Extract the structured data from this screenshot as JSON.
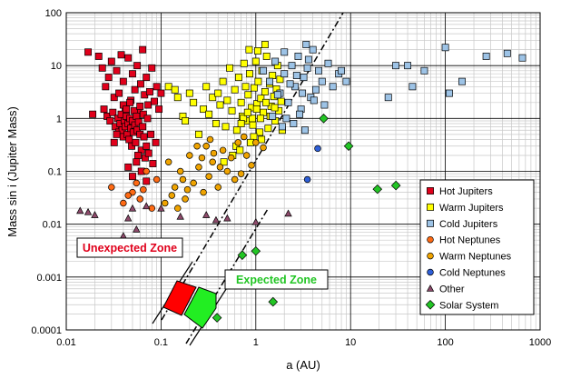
{
  "chart_data": {
    "type": "scatter",
    "xlabel": "a (AU)",
    "ylabel": "Mass sin i (Jupiter Mass)",
    "xscale": "log",
    "yscale": "log",
    "xlim": [
      0.01,
      1000
    ],
    "ylim": [
      0.0001,
      100
    ],
    "x_ticks": [
      "0.01",
      "0.1",
      "1",
      "10",
      "100",
      "1000"
    ],
    "y_ticks": [
      "0.0001",
      "0.001",
      "0.01",
      "0.1",
      "1",
      "10",
      "100"
    ],
    "grid": true,
    "legend_position": "right",
    "series": [
      {
        "name": "Hot Jupiters",
        "marker": "square",
        "color": "#e0001b",
        "points": [
          [
            0.017,
            18
          ],
          [
            0.019,
            1.2
          ],
          [
            0.022,
            15
          ],
          [
            0.024,
            9
          ],
          [
            0.026,
            4
          ],
          [
            0.028,
            6
          ],
          [
            0.03,
            12
          ],
          [
            0.032,
            2.5
          ],
          [
            0.034,
            8
          ],
          [
            0.036,
            3
          ],
          [
            0.038,
            16
          ],
          [
            0.04,
            5
          ],
          [
            0.042,
            1.6
          ],
          [
            0.045,
            14
          ],
          [
            0.048,
            2.2
          ],
          [
            0.05,
            7
          ],
          [
            0.053,
            3.5
          ],
          [
            0.056,
            10
          ],
          [
            0.058,
            1.3
          ],
          [
            0.061,
            4.5
          ],
          [
            0.064,
            20
          ],
          [
            0.067,
            2.8
          ],
          [
            0.07,
            6
          ],
          [
            0.073,
            1.8
          ],
          [
            0.076,
            3.2
          ],
          [
            0.08,
            9
          ],
          [
            0.085,
            2.1
          ],
          [
            0.09,
            4
          ],
          [
            0.095,
            1.5
          ],
          [
            0.1,
            3
          ],
          [
            0.025,
            1.5
          ],
          [
            0.027,
            1.1
          ],
          [
            0.029,
            0.9
          ],
          [
            0.031,
            1.3
          ],
          [
            0.033,
            0.7
          ],
          [
            0.035,
            1.0
          ],
          [
            0.036,
            0.55
          ],
          [
            0.037,
            0.8
          ],
          [
            0.038,
            1.2
          ],
          [
            0.039,
            0.6
          ],
          [
            0.04,
            0.45
          ],
          [
            0.041,
            0.9
          ],
          [
            0.042,
            0.7
          ],
          [
            0.043,
            1.1
          ],
          [
            0.044,
            0.5
          ],
          [
            0.045,
            0.8
          ],
          [
            0.046,
            0.4
          ],
          [
            0.047,
            1.0
          ],
          [
            0.048,
            0.65
          ],
          [
            0.049,
            0.3
          ],
          [
            0.05,
            0.9
          ],
          [
            0.051,
            0.55
          ],
          [
            0.052,
            1.4
          ],
          [
            0.053,
            0.75
          ],
          [
            0.054,
            0.35
          ],
          [
            0.055,
            1.1
          ],
          [
            0.056,
            0.6
          ],
          [
            0.058,
            0.85
          ],
          [
            0.06,
            0.5
          ],
          [
            0.062,
            0.25
          ],
          [
            0.064,
            0.7
          ],
          [
            0.066,
            0.45
          ],
          [
            0.068,
            0.18
          ],
          [
            0.07,
            0.3
          ],
          [
            0.074,
            0.22
          ],
          [
            0.078,
            0.5
          ],
          [
            0.082,
            0.14
          ],
          [
            0.088,
            0.35
          ],
          [
            0.045,
            0.12
          ],
          [
            0.05,
            0.08
          ],
          [
            0.055,
            0.15
          ],
          [
            0.062,
            0.1
          ],
          [
            0.07,
            0.065
          ],
          [
            0.04,
            1.8
          ],
          [
            0.043,
            1.5
          ],
          [
            0.047,
            2.0
          ],
          [
            0.06,
            1.7
          ],
          [
            0.065,
            1.2
          ],
          [
            0.072,
            1.0
          ],
          [
            0.034,
            0.5
          ],
          [
            0.032,
            0.35
          ],
          [
            0.057,
            0.2
          ]
        ]
      },
      {
        "name": "Warm Jupiters",
        "marker": "square",
        "color": "#ffff00",
        "points": [
          [
            0.12,
            4
          ],
          [
            0.14,
            3.5
          ],
          [
            0.15,
            2.5
          ],
          [
            0.17,
            1.1
          ],
          [
            0.18,
            0.9
          ],
          [
            0.2,
            3
          ],
          [
            0.22,
            2
          ],
          [
            0.25,
            0.5
          ],
          [
            0.28,
            1.5
          ],
          [
            0.3,
            4
          ],
          [
            0.32,
            1.2
          ],
          [
            0.35,
            2.5
          ],
          [
            0.38,
            0.8
          ],
          [
            0.4,
            3
          ],
          [
            0.42,
            1.8
          ],
          [
            0.45,
            5
          ],
          [
            0.48,
            0.7
          ],
          [
            0.5,
            2.2
          ],
          [
            0.53,
            9
          ],
          [
            0.56,
            1.4
          ],
          [
            0.6,
            3.5
          ],
          [
            0.63,
            0.6
          ],
          [
            0.66,
            6
          ],
          [
            0.7,
            2
          ],
          [
            0.72,
            1.1
          ],
          [
            0.75,
            11
          ],
          [
            0.78,
            4
          ],
          [
            0.8,
            0.9
          ],
          [
            0.83,
            2.8
          ],
          [
            0.86,
            7
          ],
          [
            0.9,
            1.6
          ],
          [
            0.93,
            0.75
          ],
          [
            0.96,
            3.8
          ],
          [
            1.0,
            12
          ],
          [
            1.03,
            1.9
          ],
          [
            1.06,
            5
          ],
          [
            1.1,
            0.55
          ],
          [
            1.13,
            2.4
          ],
          [
            1.16,
            8
          ],
          [
            1.2,
            1.3
          ],
          [
            1.25,
            3.2
          ],
          [
            1.3,
            15
          ],
          [
            1.35,
            0.65
          ],
          [
            1.4,
            4.5
          ],
          [
            1.45,
            1.7
          ],
          [
            1.5,
            6.5
          ],
          [
            1.55,
            2.6
          ],
          [
            1.6,
            0.9
          ],
          [
            1.65,
            3.6
          ],
          [
            1.7,
            10
          ],
          [
            1.75,
            1.4
          ],
          [
            1.8,
            5.5
          ],
          [
            1.85,
            2.1
          ],
          [
            1.9,
            0.6
          ],
          [
            0.85,
            20
          ],
          [
            1.05,
            19
          ],
          [
            1.25,
            25
          ],
          [
            0.95,
            0.45
          ],
          [
            0.88,
            0.35
          ],
          [
            1.15,
            0.4
          ],
          [
            0.62,
            0.3
          ],
          [
            0.57,
            0.2
          ],
          [
            0.68,
            0.25
          ],
          [
            0.46,
            0.15
          ],
          [
            0.74,
            1.0
          ],
          [
            0.92,
            1.0
          ],
          [
            1.12,
            1.0
          ],
          [
            1.02,
            1.5
          ],
          [
            0.82,
            1.3
          ],
          [
            0.7,
            0.8
          ],
          [
            1.28,
            2.0
          ],
          [
            1.42,
            1.1
          ],
          [
            1.58,
            1.6
          ]
        ]
      },
      {
        "name": "Cold Jupiters",
        "marker": "square",
        "color": "#9dc3e6",
        "points": [
          [
            1.2,
            8
          ],
          [
            1.4,
            5
          ],
          [
            1.6,
            12
          ],
          [
            1.8,
            3
          ],
          [
            2.0,
            7
          ],
          [
            2.2,
            2
          ],
          [
            2.4,
            10
          ],
          [
            2.6,
            4
          ],
          [
            2.8,
            15
          ],
          [
            3.0,
            1.5
          ],
          [
            3.2,
            6
          ],
          [
            3.5,
            9
          ],
          [
            3.8,
            2.5
          ],
          [
            4.0,
            20
          ],
          [
            4.3,
            3.5
          ],
          [
            4.6,
            8
          ],
          [
            5.0,
            5
          ],
          [
            5.3,
            1.8
          ],
          [
            5.8,
            11
          ],
          [
            6.5,
            4
          ],
          [
            7.5,
            7
          ],
          [
            2.1,
            1.0
          ],
          [
            2.5,
            0.8
          ],
          [
            2.9,
            1.2
          ],
          [
            3.3,
            0.6
          ],
          [
            1.5,
            1.1
          ],
          [
            1.9,
            0.7
          ],
          [
            2.3,
            4.5
          ],
          [
            2.7,
            6.5
          ],
          [
            3.1,
            3.0
          ],
          [
            3.6,
            13
          ],
          [
            4.1,
            2.2
          ],
          [
            1.7,
            2.8
          ],
          [
            2.0,
            18
          ],
          [
            3.4,
            25
          ],
          [
            8,
            8
          ],
          [
            9,
            5
          ],
          [
            30,
            10
          ],
          [
            40,
            10
          ],
          [
            45,
            4
          ],
          [
            60,
            8
          ],
          [
            100,
            22
          ],
          [
            110,
            3
          ],
          [
            150,
            5
          ],
          [
            270,
            15
          ],
          [
            450,
            17
          ],
          [
            650,
            14
          ],
          [
            25,
            2.5
          ]
        ]
      },
      {
        "name": "Hot Neptunes",
        "marker": "circle",
        "color": "#ff6a13",
        "points": [
          [
            0.05,
            0.04
          ],
          [
            0.06,
            0.03
          ],
          [
            0.07,
            0.1
          ],
          [
            0.08,
            0.02
          ],
          [
            0.09,
            0.07
          ],
          [
            0.03,
            0.05
          ],
          [
            0.04,
            0.025
          ],
          [
            0.045,
            0.035
          ],
          [
            0.055,
            0.06
          ],
          [
            0.065,
            0.045
          ]
        ]
      },
      {
        "name": "Warm Neptunes",
        "marker": "circle",
        "color": "#f0a400",
        "points": [
          [
            0.12,
            0.15
          ],
          [
            0.14,
            0.05
          ],
          [
            0.16,
            0.1
          ],
          [
            0.18,
            0.03
          ],
          [
            0.2,
            0.2
          ],
          [
            0.22,
            0.06
          ],
          [
            0.25,
            0.12
          ],
          [
            0.28,
            0.04
          ],
          [
            0.3,
            0.3
          ],
          [
            0.32,
            0.08
          ],
          [
            0.35,
            0.15
          ],
          [
            0.4,
            0.05
          ],
          [
            0.45,
            0.25
          ],
          [
            0.5,
            0.1
          ],
          [
            0.55,
            0.18
          ],
          [
            0.6,
            0.07
          ],
          [
            0.65,
            0.35
          ],
          [
            0.7,
            0.09
          ],
          [
            0.8,
            0.2
          ],
          [
            0.9,
            0.13
          ],
          [
            0.11,
            0.025
          ],
          [
            0.13,
            0.035
          ],
          [
            0.15,
            0.02
          ],
          [
            0.19,
            0.045
          ],
          [
            0.24,
            0.3
          ],
          [
            0.27,
            0.18
          ],
          [
            0.36,
            0.22
          ],
          [
            0.42,
            0.12
          ],
          [
            1.0,
            0.35
          ],
          [
            1.2,
            0.28
          ],
          [
            0.75,
            0.45
          ],
          [
            0.33,
            0.4
          ],
          [
            0.17,
            0.07
          ]
        ]
      },
      {
        "name": "Cold Neptunes",
        "marker": "circle",
        "color": "#2e5fd8",
        "points": [
          [
            3.5,
            0.07
          ],
          [
            4.5,
            0.27
          ]
        ]
      },
      {
        "name": "Other",
        "marker": "triangle",
        "color": "#8e4a6b",
        "points": [
          [
            0.014,
            0.018
          ],
          [
            0.017,
            0.017
          ],
          [
            0.02,
            0.015
          ],
          [
            0.05,
            0.02
          ],
          [
            0.045,
            0.013
          ],
          [
            0.04,
            0.006
          ],
          [
            0.07,
            0.022
          ],
          [
            0.1,
            0.02
          ],
          [
            0.38,
            0.012
          ],
          [
            0.5,
            0.013
          ],
          [
            1.0,
            0.011
          ],
          [
            2.2,
            0.016
          ],
          [
            0.16,
            0.014
          ],
          [
            0.3,
            0.015
          ],
          [
            0.055,
            0.008
          ]
        ]
      },
      {
        "name": "Solar System",
        "marker": "diamond",
        "color": "#22c524",
        "points": [
          [
            0.39,
            0.00017
          ],
          [
            0.72,
            0.0026
          ],
          [
            1.0,
            0.0031
          ],
          [
            1.52,
            0.00034
          ],
          [
            5.2,
            1.0
          ],
          [
            9.54,
            0.3
          ],
          [
            19.2,
            0.046
          ],
          [
            30.1,
            0.054
          ]
        ]
      }
    ],
    "annotations": [
      {
        "text": "Unexpected Zone",
        "color": "#e0001b"
      },
      {
        "text": "Expected Zone",
        "color": "#22c524"
      }
    ]
  },
  "colors": {
    "zone_red": "#ff0000",
    "zone_green": "#22ee22"
  }
}
